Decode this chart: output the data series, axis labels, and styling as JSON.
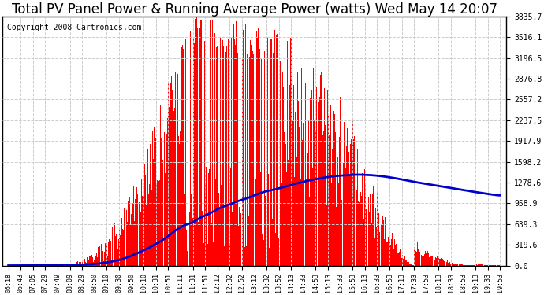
{
  "title": "Total PV Panel Power & Running Average Power (watts) Wed May 14 20:07",
  "copyright_text": "Copyright 2008 Cartronics.com",
  "background_color": "#ffffff",
  "plot_bg_color": "#ffffff",
  "bar_color": "#ff0000",
  "line_color": "#0000cc",
  "grid_color": "#cccccc",
  "ytick_labels": [
    "0.0",
    "319.6",
    "639.3",
    "958.9",
    "1278.6",
    "1598.2",
    "1917.9",
    "2237.5",
    "2557.2",
    "2876.8",
    "3196.5",
    "3516.1",
    "3835.7"
  ],
  "ytick_values": [
    0.0,
    319.6,
    639.3,
    958.9,
    1278.6,
    1598.2,
    1917.9,
    2237.5,
    2557.2,
    2876.8,
    3196.5,
    3516.1,
    3835.7
  ],
  "ymax": 3835.7,
  "xtick_labels": [
    "06:18",
    "06:43",
    "07:05",
    "07:29",
    "07:49",
    "08:09",
    "08:29",
    "08:50",
    "09:10",
    "09:30",
    "09:50",
    "10:10",
    "10:31",
    "10:51",
    "11:11",
    "11:31",
    "11:51",
    "12:12",
    "12:32",
    "12:52",
    "13:12",
    "13:32",
    "13:52",
    "14:13",
    "14:33",
    "14:53",
    "15:13",
    "15:33",
    "15:53",
    "16:13",
    "16:33",
    "16:53",
    "17:13",
    "17:33",
    "17:53",
    "18:13",
    "18:33",
    "18:53",
    "19:13",
    "19:33",
    "19:53"
  ],
  "title_fontsize": 12,
  "copyright_fontsize": 7,
  "n_dense": 820
}
